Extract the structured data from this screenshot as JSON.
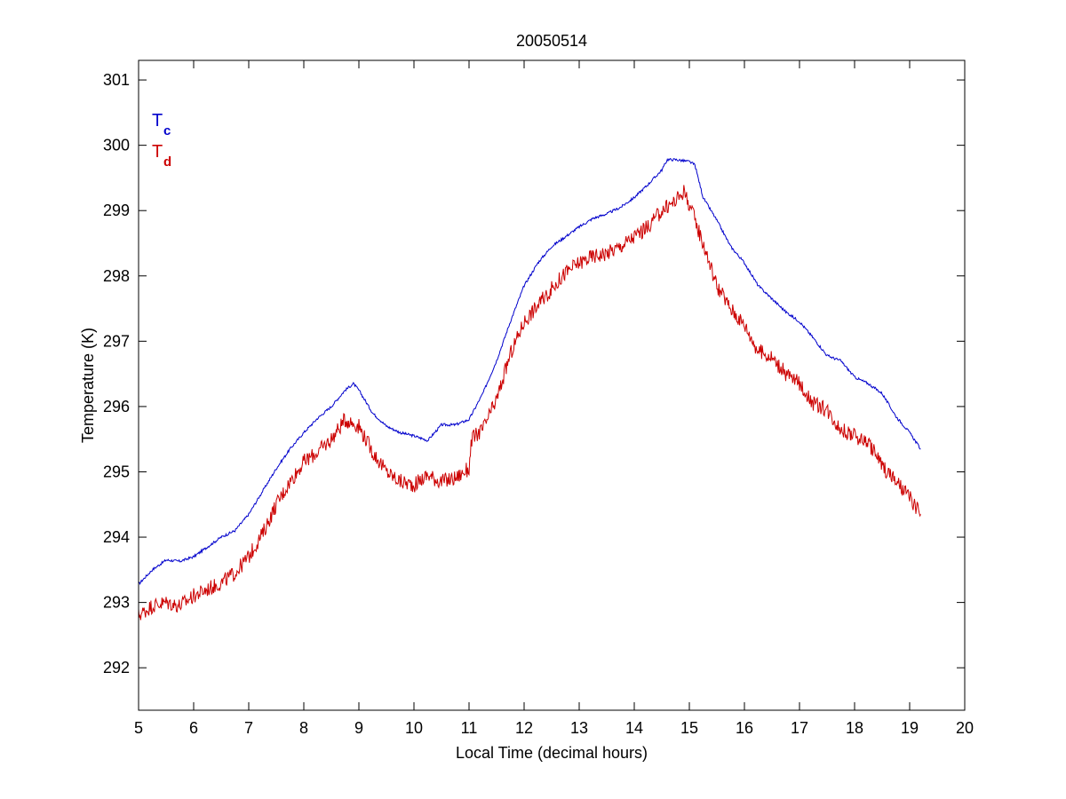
{
  "chart_data": {
    "type": "line",
    "title": "20050514",
    "xlabel": "Local Time (decimal hours)",
    "ylabel": "Temperature (K)",
    "xlim": [
      5,
      20
    ],
    "ylim": [
      291.35,
      301.3
    ],
    "xticks": [
      5,
      6,
      7,
      8,
      9,
      10,
      11,
      12,
      13,
      14,
      15,
      16,
      17,
      18,
      19,
      20
    ],
    "yticks": [
      292,
      293,
      294,
      295,
      296,
      297,
      298,
      299,
      300,
      301
    ],
    "grid": false,
    "legend_position": "top-left",
    "series": [
      {
        "name": "T",
        "subscript": "c",
        "color": "#0000cc",
        "x": [
          5.0,
          5.25,
          5.5,
          5.75,
          6.0,
          6.25,
          6.5,
          6.75,
          7.0,
          7.25,
          7.5,
          7.75,
          8.0,
          8.25,
          8.5,
          8.75,
          8.9,
          9.0,
          9.25,
          9.5,
          9.75,
          10.0,
          10.25,
          10.5,
          10.75,
          11.0,
          11.25,
          11.5,
          11.75,
          12.0,
          12.25,
          12.5,
          12.75,
          13.0,
          13.25,
          13.5,
          13.75,
          14.0,
          14.25,
          14.5,
          14.6,
          14.75,
          15.0,
          15.1,
          15.25,
          15.5,
          15.75,
          16.0,
          16.25,
          16.5,
          16.75,
          17.0,
          17.25,
          17.5,
          17.75,
          18.0,
          18.25,
          18.5,
          18.75,
          19.0,
          19.2
        ],
        "values": [
          293.28,
          293.5,
          293.65,
          293.63,
          293.7,
          293.85,
          294.0,
          294.1,
          294.35,
          294.7,
          295.05,
          295.35,
          295.6,
          295.82,
          296.0,
          296.25,
          296.35,
          296.25,
          295.9,
          295.7,
          295.6,
          295.55,
          295.48,
          295.72,
          295.72,
          295.8,
          296.2,
          296.7,
          297.3,
          297.85,
          298.2,
          298.45,
          298.6,
          298.75,
          298.88,
          298.95,
          299.05,
          299.2,
          299.4,
          299.62,
          299.78,
          299.78,
          299.75,
          299.7,
          299.2,
          298.85,
          298.45,
          298.2,
          297.85,
          297.65,
          297.45,
          297.3,
          297.05,
          296.78,
          296.7,
          296.45,
          296.35,
          296.2,
          295.85,
          295.6,
          295.35
        ]
      },
      {
        "name": "T",
        "subscript": "d",
        "color": "#cc0000",
        "x": [
          5.0,
          5.25,
          5.5,
          5.75,
          6.0,
          6.25,
          6.5,
          6.75,
          7.0,
          7.25,
          7.5,
          7.75,
          8.0,
          8.25,
          8.5,
          8.75,
          9.0,
          9.25,
          9.5,
          9.75,
          10.0,
          10.25,
          10.5,
          10.75,
          11.0,
          11.05,
          11.25,
          11.5,
          11.75,
          12.0,
          12.25,
          12.5,
          12.75,
          13.0,
          13.25,
          13.5,
          13.75,
          14.0,
          14.25,
          14.5,
          14.75,
          14.9,
          15.0,
          15.25,
          15.5,
          15.75,
          16.0,
          16.25,
          16.5,
          16.75,
          17.0,
          17.25,
          17.5,
          17.75,
          18.0,
          18.25,
          18.5,
          18.75,
          19.0,
          19.2
        ],
        "values": [
          292.8,
          292.95,
          293.0,
          292.95,
          293.1,
          293.2,
          293.3,
          293.45,
          293.7,
          294.05,
          294.5,
          294.85,
          295.15,
          295.3,
          295.5,
          295.8,
          295.7,
          295.3,
          295.0,
          294.85,
          294.8,
          294.95,
          294.85,
          294.9,
          295.05,
          295.5,
          295.65,
          296.1,
          296.8,
          297.3,
          297.55,
          297.8,
          298.05,
          298.2,
          298.3,
          298.35,
          298.45,
          298.6,
          298.75,
          299.0,
          299.15,
          299.3,
          299.1,
          298.5,
          297.85,
          297.5,
          297.25,
          296.85,
          296.75,
          296.5,
          296.35,
          296.05,
          295.95,
          295.65,
          295.55,
          295.45,
          295.1,
          294.85,
          294.6,
          294.35
        ]
      }
    ]
  }
}
